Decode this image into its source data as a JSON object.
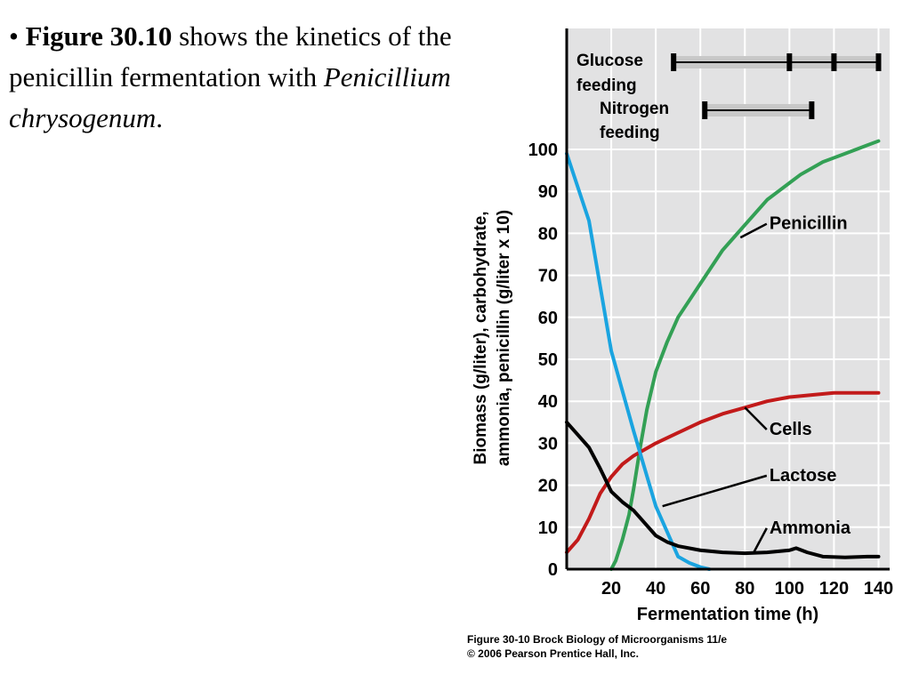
{
  "slide": {
    "bullet": "•",
    "figure_ref": "Figure 30.10",
    "text_mid": " shows the kinetics of the penicillin fermentation with ",
    "organism": "Penicillium chrysogenum",
    "text_end": "."
  },
  "caption": {
    "line1": "Figure 30-10  Brock Biology of Microorganisms 11/e",
    "line2": "© 2006 Pearson Prentice Hall, Inc."
  },
  "colors": {
    "panel": "#e2e2e3",
    "penicillin": "#33a055",
    "cells": "#c21a1a",
    "lactose": "#1aa4e0",
    "ammonia": "#000000",
    "feed_bar": "#c8c8c8"
  },
  "chart_data": {
    "type": "line",
    "title": "",
    "xlabel": "Fermentation time (h)",
    "ylabel_line1": "Biomass (g/liter), carbohydrate,",
    "ylabel_line2": "ammonia, penicillin (g/liter x 10)",
    "xlim": [
      0,
      145
    ],
    "ylim": [
      0,
      100
    ],
    "x_ticks": [
      20,
      40,
      60,
      80,
      100,
      120,
      140
    ],
    "y_ticks": [
      0,
      10,
      20,
      30,
      40,
      50,
      60,
      70,
      80,
      90,
      100
    ],
    "grid": true,
    "series": [
      {
        "name": "Penicillin",
        "points": [
          [
            20,
            0
          ],
          [
            22,
            2
          ],
          [
            25,
            7
          ],
          [
            28,
            13
          ],
          [
            30,
            19
          ],
          [
            33,
            29
          ],
          [
            36,
            38
          ],
          [
            40,
            47
          ],
          [
            45,
            54
          ],
          [
            50,
            60
          ],
          [
            55,
            64
          ],
          [
            60,
            68
          ],
          [
            65,
            72
          ],
          [
            70,
            76
          ],
          [
            75,
            79
          ],
          [
            80,
            82
          ],
          [
            85,
            85
          ],
          [
            90,
            88
          ],
          [
            95,
            90
          ],
          [
            100,
            92
          ],
          [
            105,
            94
          ],
          [
            110,
            95.5
          ],
          [
            115,
            97
          ],
          [
            120,
            98
          ],
          [
            125,
            99
          ],
          [
            130,
            100
          ],
          [
            135,
            101
          ],
          [
            140,
            102
          ]
        ]
      },
      {
        "name": "Cells",
        "points": [
          [
            0,
            4
          ],
          [
            5,
            7
          ],
          [
            10,
            12
          ],
          [
            15,
            18
          ],
          [
            20,
            22
          ],
          [
            25,
            25
          ],
          [
            30,
            27
          ],
          [
            35,
            28.5
          ],
          [
            40,
            30
          ],
          [
            50,
            32.5
          ],
          [
            60,
            35
          ],
          [
            70,
            37
          ],
          [
            80,
            38.5
          ],
          [
            90,
            40
          ],
          [
            100,
            41
          ],
          [
            110,
            41.5
          ],
          [
            120,
            42
          ],
          [
            130,
            42
          ],
          [
            140,
            42
          ]
        ]
      },
      {
        "name": "Lactose",
        "points": [
          [
            0,
            99
          ],
          [
            10,
            83
          ],
          [
            20,
            52
          ],
          [
            30,
            33
          ],
          [
            40,
            15
          ],
          [
            50,
            3
          ],
          [
            55,
            1.5
          ],
          [
            60,
            0.5
          ],
          [
            64,
            0
          ]
        ]
      },
      {
        "name": "Ammonia",
        "points": [
          [
            0,
            35
          ],
          [
            5,
            32
          ],
          [
            10,
            29
          ],
          [
            15,
            24
          ],
          [
            20,
            18.5
          ],
          [
            25,
            16
          ],
          [
            30,
            14
          ],
          [
            35,
            11
          ],
          [
            40,
            8
          ],
          [
            45,
            6.5
          ],
          [
            50,
            5.5
          ],
          [
            60,
            4.5
          ],
          [
            70,
            4
          ],
          [
            80,
            3.8
          ],
          [
            90,
            4
          ],
          [
            100,
            4.5
          ],
          [
            103,
            5
          ],
          [
            108,
            4
          ],
          [
            115,
            3
          ],
          [
            125,
            2.8
          ],
          [
            135,
            3
          ],
          [
            140,
            3
          ]
        ]
      }
    ],
    "labels": [
      {
        "text": "Penicillin",
        "label_at": [
          91,
          81
        ],
        "point": [
          78,
          79
        ]
      },
      {
        "text": "Cells",
        "label_at": [
          91,
          32
        ],
        "point": [
          80,
          38.5
        ]
      },
      {
        "text": "Lactose",
        "label_at": [
          91,
          21
        ],
        "point": [
          43,
          15
        ]
      },
      {
        "text": "Ammonia",
        "label_at": [
          91,
          8.5
        ],
        "point": [
          84,
          4
        ]
      }
    ],
    "feeding": [
      {
        "name": "Glucose feeding",
        "label": [
          "Glucose",
          "feeding"
        ],
        "start": 48,
        "end": 140,
        "marks": [
          48,
          100,
          120,
          140
        ]
      },
      {
        "name": "Nitrogen feeding",
        "label": [
          "Nitrogen",
          "feeding"
        ],
        "start": 62,
        "end": 110,
        "marks": [
          62,
          110
        ]
      }
    ]
  }
}
